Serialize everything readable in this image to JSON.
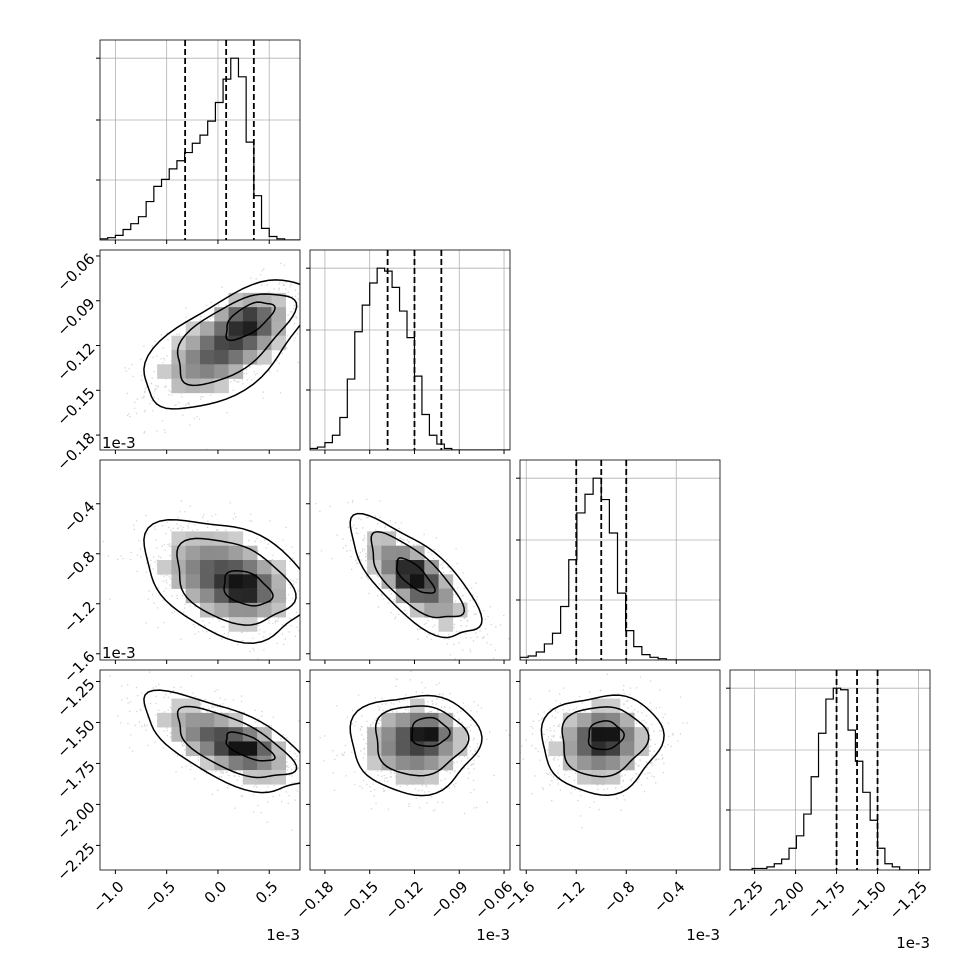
{
  "chart_data": {
    "type": "corner",
    "offset_label": "1e-3",
    "parameters": [
      {
        "range": [
          -1.15,
          0.8
        ],
        "ticks": [
          -1.0,
          -0.5,
          0.0,
          0.5
        ],
        "tick_labels": [
          "−1.0",
          "−0.5",
          "0.0",
          "0.5"
        ],
        "quantiles": [
          -0.32,
          0.08,
          0.35
        ],
        "hist_start": -1.15,
        "hist_step": 0.075,
        "hist_counts": [
          1,
          2,
          4,
          9,
          14,
          20,
          33,
          46,
          52,
          61,
          68,
          75,
          83,
          90,
          102,
          118,
          138,
          156,
          140,
          84,
          38,
          10,
          3,
          1,
          0,
          0
        ]
      },
      {
        "range": [
          -0.19,
          -0.056
        ],
        "ticks": [
          -0.18,
          -0.15,
          -0.12,
          -0.09,
          -0.06
        ],
        "tick_labels": [
          "−0.18",
          "−0.15",
          "−0.12",
          "−0.09",
          "−0.06"
        ],
        "quantiles": [
          -0.138,
          -0.12,
          -0.102
        ],
        "hist_start": -0.19,
        "hist_step": 0.005,
        "hist_counts": [
          1,
          2,
          5,
          10,
          22,
          48,
          80,
          98,
          113,
          123,
          121,
          110,
          94,
          76,
          50,
          24,
          10,
          4,
          1,
          0,
          0,
          0,
          0,
          0,
          0,
          0,
          0
        ]
      },
      {
        "range": [
          -1.65,
          -0.05
        ],
        "ticks": [
          -1.6,
          -1.2,
          -0.8,
          -0.4
        ],
        "tick_labels": [
          "−1.6",
          "−1.2",
          "−0.8",
          "−0.4"
        ],
        "quantiles": [
          -1.2,
          -1.0,
          -0.8
        ],
        "hist_start": -1.65,
        "hist_step": 0.065,
        "hist_counts": [
          2,
          3,
          6,
          12,
          20,
          40,
          75,
          110,
          124,
          136,
          120,
          95,
          50,
          22,
          10,
          4,
          2,
          1,
          0,
          0,
          0,
          0,
          0,
          0,
          0
        ]
      },
      {
        "range": [
          -2.4,
          -1.18
        ],
        "ticks": [
          -2.25,
          -2.0,
          -1.75,
          -1.5,
          -1.25
        ],
        "tick_labels": [
          "−2.25",
          "−2.00",
          "−1.75",
          "−1.50",
          "−1.25"
        ],
        "quantiles": [
          -1.75,
          -1.625,
          -1.5
        ],
        "hist_start": -2.4,
        "hist_step": 0.045,
        "hist_counts": [
          0,
          0,
          0,
          1,
          1,
          2,
          4,
          7,
          14,
          22,
          36,
          60,
          88,
          110,
          117,
          116,
          90,
          70,
          50,
          32,
          14,
          4,
          2,
          0,
          0,
          0,
          0
        ]
      }
    ],
    "correlations": {
      "1,0": 0.62,
      "2,0": -0.35,
      "2,1": -0.72,
      "3,0": -0.65,
      "3,1": 0.0,
      "3,2": 0.05
    },
    "pair_modes": {
      "1,0": [
        0.3,
        -0.103
      ],
      "2,0": [
        0.28,
        -1.08
      ],
      "2,1": [
        -0.12,
        -0.98
      ],
      "3,0": [
        0.3,
        -1.65
      ],
      "3,1": [
        -0.11,
        -1.56
      ],
      "3,2": [
        -0.97,
        -1.58
      ]
    },
    "contours": "gray density with 3 black contour levels and scattered sample points",
    "grid": true
  }
}
